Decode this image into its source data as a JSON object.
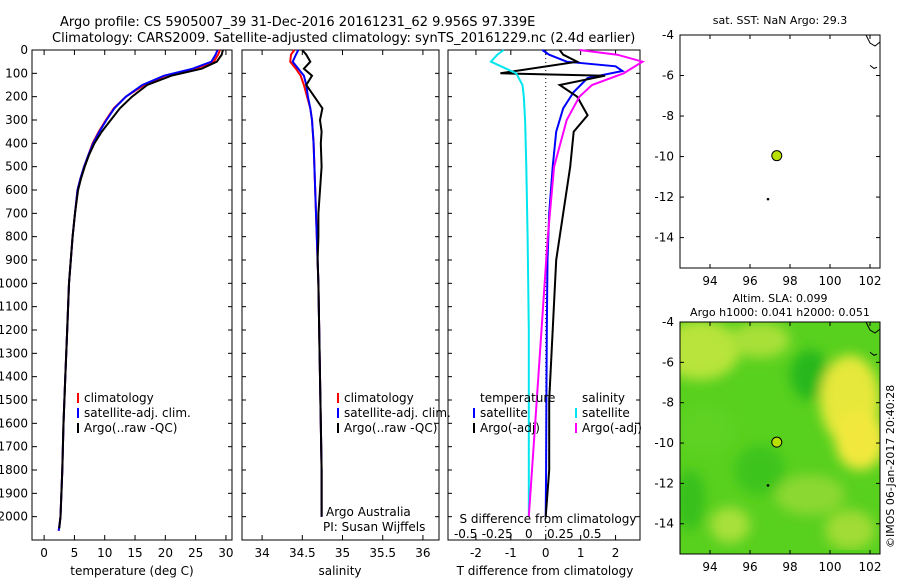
{
  "header": {
    "line1": "Argo profile: CS 5905007_39 31-Dec-2016 20161231_62 9.956S 97.339E",
    "line2": "Climatology: CARS2009. Satellite-adjusted climatology: synTS_20161229.nc (2.4d earlier)"
  },
  "watermark": "©IMOS 06-Jan-2017 20:40:28",
  "colors": {
    "climatology": "#ff0000",
    "satellite": "#0000ff",
    "argo": "#000000",
    "sal_satellite": "#00e5ee",
    "sal_argo": "#ff00ff",
    "map_marker": "#b8e000"
  },
  "chart_data": [
    {
      "type": "line",
      "xlabel": "temperature (deg C)",
      "xlim": [
        -2,
        31
      ],
      "ylim": [
        0,
        2100
      ],
      "y_ticks": [
        0,
        100,
        200,
        300,
        400,
        500,
        600,
        700,
        800,
        900,
        1000,
        1100,
        1200,
        1300,
        1400,
        1500,
        1600,
        1700,
        1800,
        1900,
        2000
      ],
      "x_ticks": [
        0,
        5,
        10,
        15,
        20,
        25,
        30
      ],
      "legend": [
        "climatology",
        "satellite-adj. clim.",
        "Argo(..raw -QC)"
      ],
      "series": [
        {
          "name": "climatology",
          "x": [
            29.0,
            28.7,
            28.0,
            25.0,
            20.0,
            16.5,
            13.5,
            11.5,
            10.2,
            9.0,
            8.0,
            7.3,
            6.6,
            6.0,
            5.5,
            5.1,
            4.7,
            4.4,
            4.1,
            3.8,
            3.5,
            3.2,
            3.0,
            2.7,
            2.4
          ],
          "y": [
            0,
            20,
            50,
            80,
            110,
            150,
            200,
            250,
            300,
            350,
            400,
            450,
            500,
            550,
            600,
            700,
            800,
            900,
            1000,
            1200,
            1400,
            1600,
            1800,
            2000,
            2060
          ]
        },
        {
          "name": "satellite-adj. clim.",
          "x": [
            28.6,
            28.3,
            27.6,
            24.5,
            19.8,
            16.2,
            13.5,
            11.6,
            10.3,
            9.1,
            8.1,
            7.3,
            6.6,
            6.0,
            5.5,
            5.1,
            4.7,
            4.4,
            4.1,
            3.8,
            3.5,
            3.2,
            3.0,
            2.7,
            2.4
          ],
          "y": [
            0,
            20,
            50,
            80,
            110,
            150,
            200,
            250,
            300,
            350,
            400,
            450,
            500,
            550,
            600,
            700,
            800,
            900,
            1000,
            1200,
            1400,
            1600,
            1800,
            2000,
            2060
          ]
        },
        {
          "name": "Argo(..raw -QC)",
          "x": [
            29.5,
            29.3,
            28.5,
            26.0,
            21.0,
            17.0,
            14.5,
            12.5,
            11.0,
            9.5,
            8.3,
            7.4,
            6.7,
            6.1,
            5.6,
            5.1,
            4.7,
            4.4,
            4.1,
            3.8,
            3.5,
            3.2,
            3.0,
            2.7,
            2.5
          ],
          "y": [
            0,
            20,
            50,
            80,
            110,
            150,
            200,
            250,
            300,
            350,
            400,
            450,
            500,
            550,
            600,
            700,
            800,
            900,
            1000,
            1200,
            1400,
            1600,
            1800,
            2000,
            2050
          ]
        }
      ]
    },
    {
      "type": "line",
      "xlabel": "salinity",
      "xlim": [
        33.75,
        36.2
      ],
      "ylim": [
        0,
        2100
      ],
      "x_ticks": [
        34,
        34.5,
        35,
        35.5,
        36
      ],
      "legend": [
        "climatology",
        "satellite-adj. clim.",
        "Argo(..raw -QC)"
      ],
      "annotation": [
        "Argo Australia",
        "PI: Susan Wijffels"
      ],
      "series": [
        {
          "name": "climatology",
          "x": [
            34.4,
            34.36,
            34.35,
            34.42,
            34.48,
            34.52,
            34.56,
            34.6,
            34.62,
            34.63,
            34.64,
            34.65,
            34.66,
            34.67,
            34.68,
            34.69,
            34.7,
            34.71,
            34.72,
            34.73,
            34.74,
            34.74
          ],
          "y": [
            0,
            20,
            50,
            80,
            110,
            150,
            200,
            250,
            300,
            350,
            400,
            500,
            600,
            700,
            800,
            900,
            1000,
            1200,
            1400,
            1600,
            1800,
            2000
          ]
        },
        {
          "name": "satellite-adj. clim.",
          "x": [
            34.45,
            34.42,
            34.38,
            34.45,
            34.52,
            34.55,
            34.57,
            34.6,
            34.62,
            34.63,
            34.64,
            34.65,
            34.66,
            34.67,
            34.68,
            34.69,
            34.7,
            34.71,
            34.72,
            34.73,
            34.74,
            34.74
          ],
          "y": [
            0,
            20,
            50,
            80,
            110,
            150,
            200,
            250,
            300,
            350,
            400,
            500,
            600,
            700,
            800,
            900,
            1000,
            1200,
            1400,
            1600,
            1800,
            2000
          ]
        },
        {
          "name": "Argo(..raw -QC)",
          "x": [
            34.5,
            34.55,
            34.6,
            34.52,
            34.62,
            34.55,
            34.65,
            34.75,
            34.72,
            34.74,
            34.73,
            34.74,
            34.72,
            34.7,
            34.7,
            34.69,
            34.7,
            34.71,
            34.72,
            34.73,
            34.74,
            34.74
          ],
          "y": [
            0,
            20,
            50,
            80,
            110,
            150,
            200,
            250,
            300,
            350,
            400,
            500,
            600,
            700,
            800,
            900,
            1000,
            1200,
            1400,
            1600,
            1800,
            2000
          ]
        }
      ]
    },
    {
      "type": "line",
      "xlabel": "T difference from climatology",
      "x2label": "S difference from climatology",
      "xlim": [
        -2.8,
        2.7
      ],
      "ylim": [
        0,
        2100
      ],
      "x_ticks": [
        -2,
        -1,
        0,
        1,
        2
      ],
      "x_tick_labels": [
        "-2",
        "-1",
        "0",
        "1",
        "2"
      ],
      "x2_ticks": [
        -0.5,
        -0.25,
        0,
        0.25,
        0.5
      ],
      "x2_tick_labels": [
        "-0.5",
        "-0.25",
        "0",
        "0.25",
        "0.5"
      ],
      "legend_temperature": [
        "temperature",
        "satellite",
        "Argo(-adj)"
      ],
      "legend_salinity": [
        "salinity",
        "satellite",
        "Argo(-adj)"
      ],
      "series": [
        {
          "name": "satellite",
          "x": [
            -0.1,
            0.1,
            0.6,
            2.0,
            2.2,
            1.2,
            0.8,
            0.5,
            0.3,
            0.2,
            0.1,
            0.05,
            0.03,
            0.02,
            0.01,
            0.0
          ],
          "y": [
            0,
            20,
            50,
            70,
            90,
            120,
            180,
            250,
            350,
            500,
            700,
            900,
            1200,
            1500,
            1800,
            2000
          ]
        },
        {
          "name": "Argo(-adj)",
          "x": [
            0.4,
            0.5,
            0.9,
            -1.3,
            1.7,
            0.4,
            0.9,
            1.2,
            0.8,
            0.7,
            0.5,
            0.3,
            0.2,
            0.1,
            0.1,
            0.0
          ],
          "y": [
            0,
            20,
            50,
            100,
            110,
            150,
            200,
            280,
            350,
            500,
            700,
            900,
            1200,
            1500,
            1800,
            2000
          ]
        },
        {
          "name": "sal satellite",
          "x": [
            -0.2,
            -0.25,
            -0.3,
            -0.1,
            -0.05,
            -0.04,
            -0.03,
            -0.02,
            -0.01,
            0.0,
            0.0,
            0.0
          ],
          "y": [
            0,
            20,
            50,
            100,
            150,
            200,
            300,
            500,
            800,
            1200,
            1600,
            2000
          ]
        },
        {
          "name": "sal Argo(-adj)",
          "x": [
            0.4,
            0.7,
            0.9,
            0.75,
            0.5,
            0.4,
            0.3,
            0.2,
            0.15,
            0.1,
            0.05,
            0.0
          ],
          "y": [
            0,
            20,
            50,
            100,
            150,
            200,
            300,
            500,
            800,
            1200,
            1600,
            2000
          ]
        }
      ]
    },
    {
      "type": "scatter",
      "title": "sat. SST: NaN Argo: 29.3",
      "xlim": [
        92.5,
        102.5
      ],
      "ylim": [
        -15.5,
        -4
      ],
      "x_ticks": [
        94,
        96,
        98,
        100,
        102
      ],
      "y_ticks": [
        -4,
        -6,
        -8,
        -10,
        -12,
        -14
      ],
      "points": [
        {
          "x": 97.339,
          "y": -9.956
        }
      ]
    },
    {
      "type": "heatmap",
      "title_lines": [
        "Altim. SLA: 0.099",
        "Argo h1000: 0.041 h2000: 0.051"
      ],
      "xlim": [
        92.5,
        102.5
      ],
      "ylim": [
        -15.5,
        -4
      ],
      "x_ticks": [
        94,
        96,
        98,
        100,
        102
      ],
      "y_ticks": [
        -4,
        -6,
        -8,
        -10,
        -12,
        -14
      ],
      "points": [
        {
          "x": 97.339,
          "y": -9.956
        }
      ]
    }
  ]
}
